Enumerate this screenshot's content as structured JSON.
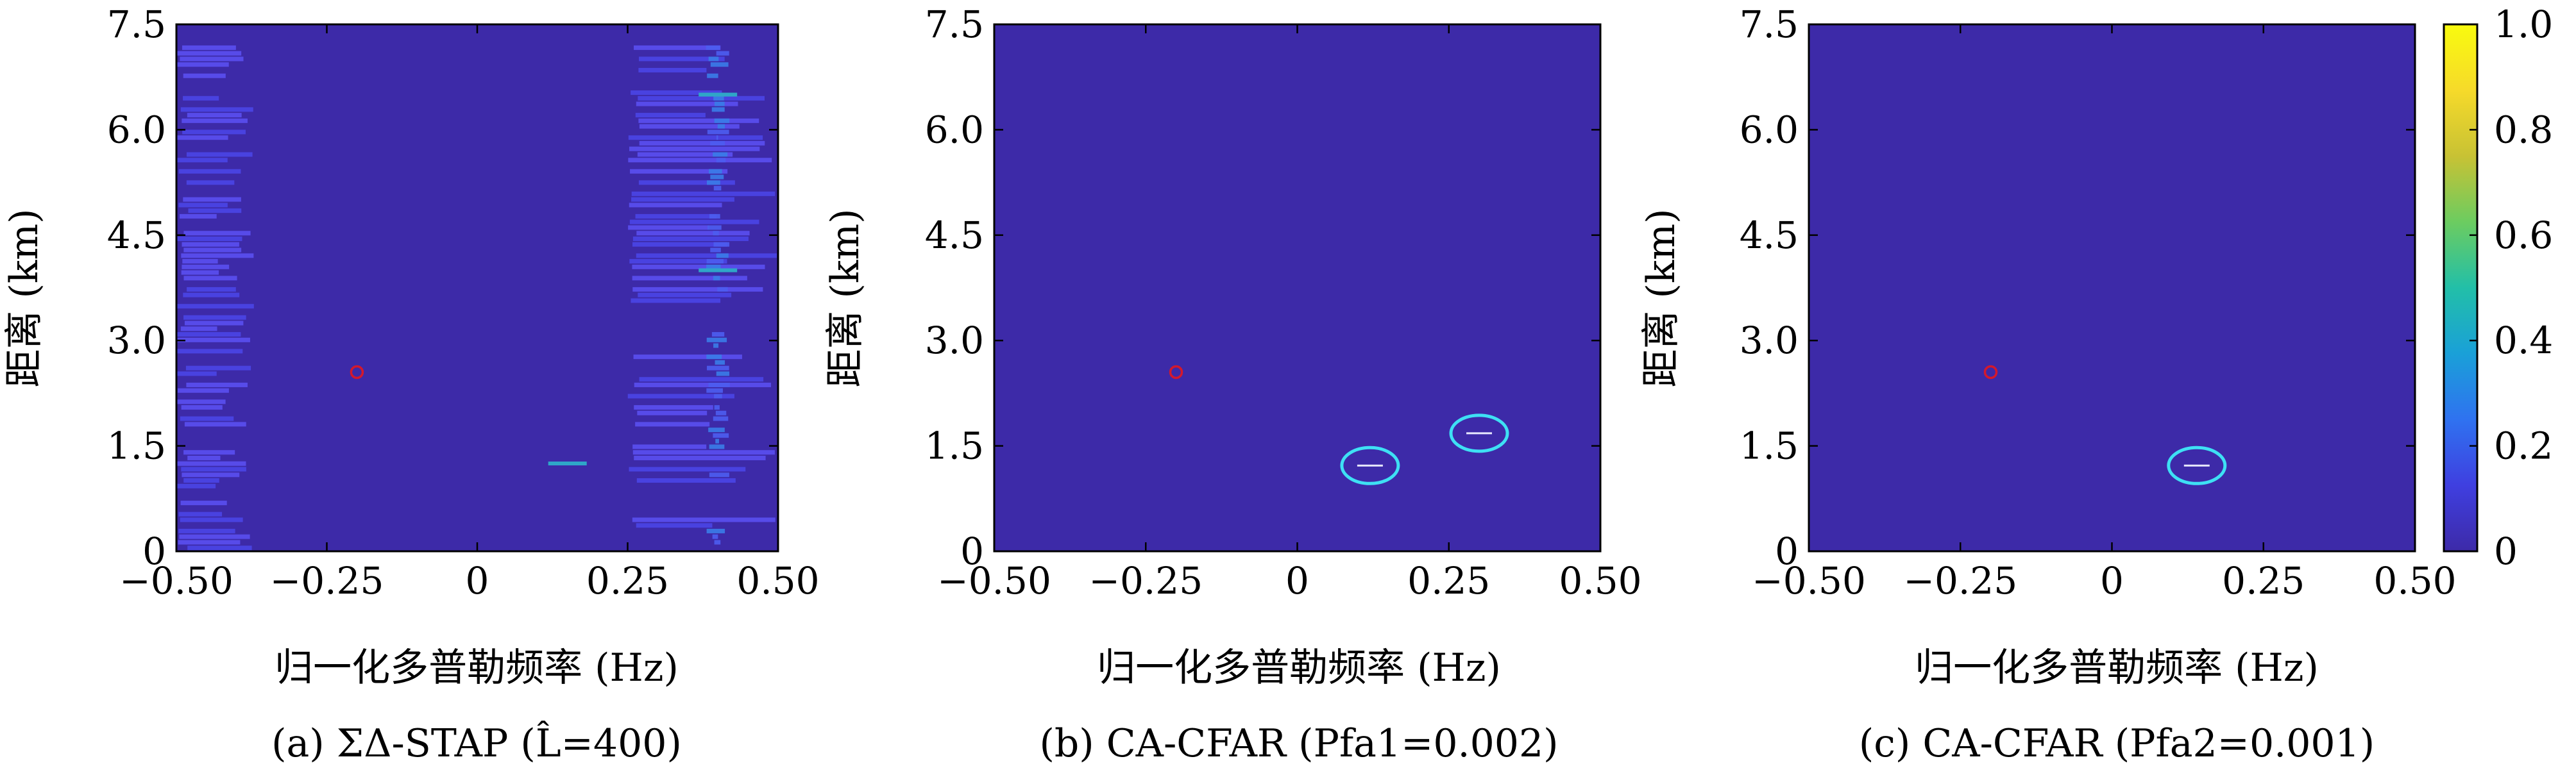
{
  "figure": {
    "panels": [
      {
        "caption": "(a) ΣΔ-STAP (L̂=400)"
      },
      {
        "caption": "(b) CA-CFAR (Pfa1=0.002)"
      },
      {
        "caption": "(c) CA-CFAR (Pfa2=0.001)"
      }
    ],
    "colorbar": {
      "ticks": [
        "1.0",
        "0.8",
        "0.6",
        "0.4",
        "0.2",
        "0"
      ],
      "range": [
        0,
        1
      ],
      "colors": [
        "#3d2aa8",
        "#3f3fe0",
        "#2f72f0",
        "#1aa0d8",
        "#22bfa8",
        "#6ccc60",
        "#c8c234",
        "#f6da2a",
        "#f9fb0e"
      ]
    }
  },
  "chart_data": [
    {
      "type": "heatmap",
      "title": "",
      "xlabel": "归一化多普勒频率 (Hz)",
      "ylabel": "距离 (km)",
      "xlim": [
        -0.5,
        0.5
      ],
      "ylim": [
        0,
        7.5
      ],
      "xticks": [
        "−0.50",
        "−0.25",
        "0",
        "0.25",
        "0.50"
      ],
      "yticks": [
        "0",
        "1.5",
        "3.0",
        "4.5",
        "6.0",
        "7.5"
      ],
      "background": "#3d2aa8",
      "description_points": [
        {
          "x": -0.2,
          "y": 2.55,
          "marker": "red-circle"
        },
        {
          "x": 0.15,
          "y": 1.25,
          "value": 0.5
        },
        {
          "x": 0.4,
          "y": 6.5,
          "value": 0.4
        },
        {
          "x": 0.4,
          "y": 4.0,
          "value": 0.35
        }
      ],
      "clutter_regions": [
        {
          "x_from": -0.5,
          "x_to": -0.37,
          "y_from": 0,
          "y_to": 7.2,
          "level": 0.12
        },
        {
          "x_from": 0.25,
          "x_to": 0.5,
          "y_from": 0,
          "y_to": 7.2,
          "level": 0.15
        },
        {
          "x_from": 0.38,
          "x_to": 0.42,
          "y_from": 0,
          "y_to": 7.2,
          "level": 0.3
        }
      ]
    },
    {
      "type": "heatmap",
      "title": "",
      "xlabel": "归一化多普勒频率 (Hz)",
      "ylabel": "距离 (km)",
      "xlim": [
        -0.5,
        0.5
      ],
      "ylim": [
        0,
        7.5
      ],
      "xticks": [
        "−0.50",
        "−0.25",
        "0",
        "0.25",
        "0.50"
      ],
      "yticks": [
        "0",
        "1.5",
        "3.0",
        "4.5",
        "6.0",
        "7.5"
      ],
      "background": "#3d2aa8",
      "detections": [
        {
          "x": -0.2,
          "y": 2.55,
          "marker": "red-circle"
        },
        {
          "x": 0.12,
          "y": 1.22,
          "marker": "cyan-ellipse"
        },
        {
          "x": 0.3,
          "y": 1.68,
          "marker": "cyan-ellipse"
        }
      ]
    },
    {
      "type": "heatmap",
      "title": "",
      "xlabel": "归一化多普勒频率 (Hz)",
      "ylabel": "距离 (km)",
      "xlim": [
        -0.5,
        0.5
      ],
      "ylim": [
        0,
        7.5
      ],
      "xticks": [
        "−0.50",
        "−0.25",
        "0",
        "0.25",
        "0.50"
      ],
      "yticks": [
        "0",
        "1.5",
        "3.0",
        "4.5",
        "6.0",
        "7.5"
      ],
      "background": "#3d2aa8",
      "detections": [
        {
          "x": -0.2,
          "y": 2.55,
          "marker": "red-circle"
        },
        {
          "x": 0.14,
          "y": 1.22,
          "marker": "cyan-ellipse"
        }
      ]
    }
  ]
}
